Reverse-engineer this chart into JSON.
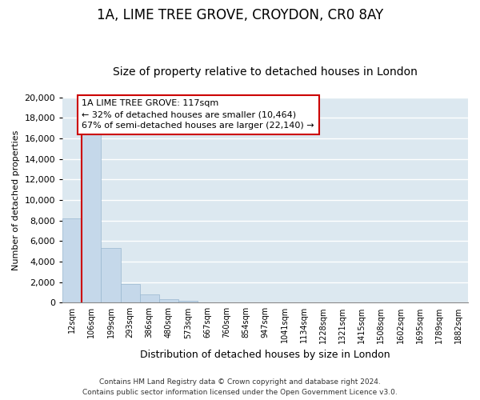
{
  "title": "1A, LIME TREE GROVE, CROYDON, CR0 8AY",
  "subtitle": "Size of property relative to detached houses in London",
  "xlabel": "Distribution of detached houses by size in London",
  "ylabel": "Number of detached properties",
  "bar_labels": [
    "12sqm",
    "106sqm",
    "199sqm",
    "293sqm",
    "386sqm",
    "480sqm",
    "573sqm",
    "667sqm",
    "760sqm",
    "854sqm",
    "947sqm",
    "1041sqm",
    "1134sqm",
    "1228sqm",
    "1321sqm",
    "1415sqm",
    "1508sqm",
    "1602sqm",
    "1695sqm",
    "1789sqm",
    "1882sqm"
  ],
  "bar_heights": [
    8200,
    16500,
    5300,
    1800,
    800,
    300,
    200,
    0,
    0,
    0,
    0,
    0,
    0,
    0,
    0,
    0,
    0,
    0,
    0,
    0,
    0
  ],
  "bar_color": "#c5d8ea",
  "bar_edge_color": "#9ab8d0",
  "vline_x_index": 1,
  "vline_color": "#cc0000",
  "annotation_title": "1A LIME TREE GROVE: 117sqm",
  "annotation_line1": "← 32% of detached houses are smaller (10,464)",
  "annotation_line2": "67% of semi-detached houses are larger (22,140) →",
  "annotation_box_color": "#ffffff",
  "annotation_box_edge": "#cc0000",
  "ylim": [
    0,
    20000
  ],
  "yticks": [
    0,
    2000,
    4000,
    6000,
    8000,
    10000,
    12000,
    14000,
    16000,
    18000,
    20000
  ],
  "footer_line1": "Contains HM Land Registry data © Crown copyright and database right 2024.",
  "footer_line2": "Contains public sector information licensed under the Open Government Licence v3.0.",
  "bg_color": "#ffffff",
  "plot_bg_color": "#dce8f0",
  "grid_color": "#ffffff",
  "title_fontsize": 12,
  "subtitle_fontsize": 10,
  "ylabel_text": "Number of detached properties"
}
